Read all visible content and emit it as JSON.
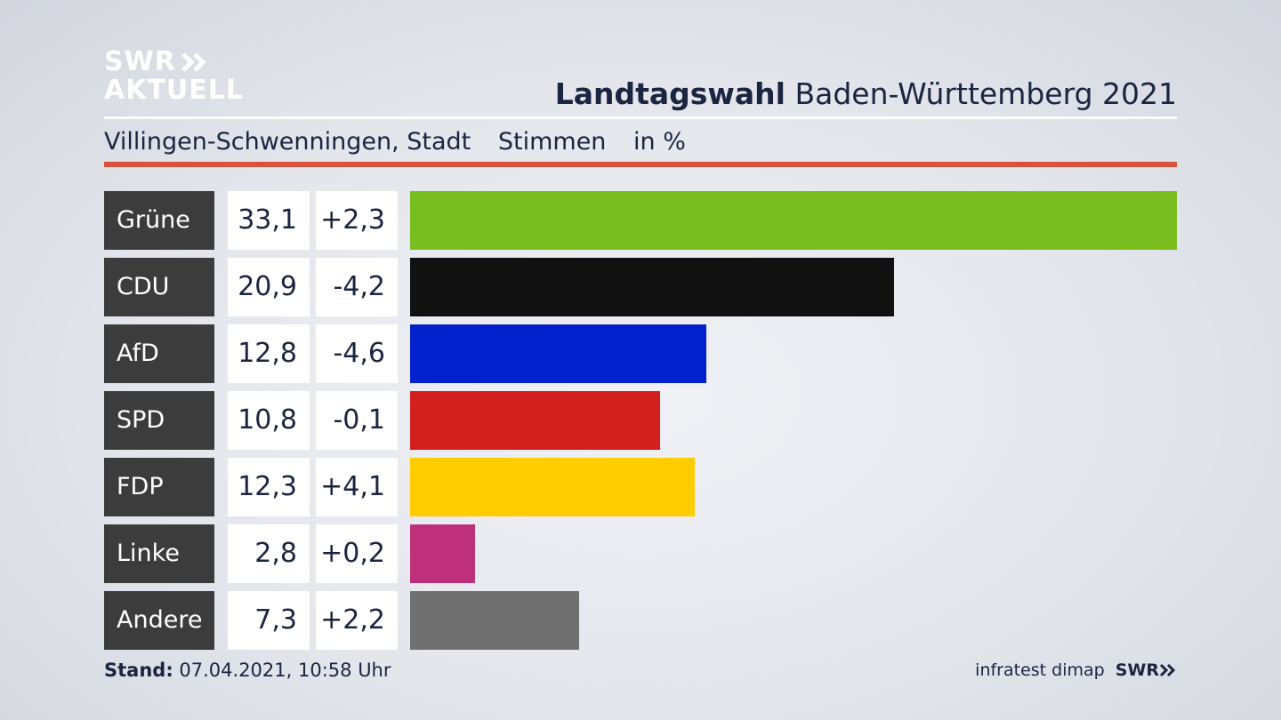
{
  "brand": {
    "logo_line1": "SWR",
    "logo_line2": "AKTUELL",
    "logo_color": "#ffffff"
  },
  "header": {
    "title_bold": "Landtagswahl",
    "title_rest": "Baden-Württemberg 2021"
  },
  "subheader": {
    "location": "Villingen-Schwenningen, Stadt",
    "measure": "Stimmen",
    "unit": "in %"
  },
  "footer": {
    "stand_label": "Stand:",
    "stand_value": "07.04.2021, 10:58 Uhr",
    "source": "infratest dimap",
    "broadcaster": "SWR"
  },
  "chart_data": {
    "type": "bar",
    "orientation": "horizontal",
    "categories": [
      "Grüne",
      "CDU",
      "AfD",
      "SPD",
      "FDP",
      "Linke",
      "Andere"
    ],
    "series": [
      {
        "values": [
          33.1,
          20.9,
          12.8,
          10.8,
          12.3,
          2.8,
          7.3
        ]
      }
    ],
    "value_labels": [
      "33,1",
      "20,9",
      "12,8",
      "10,8",
      "12,3",
      "2,8",
      "7,3"
    ],
    "change_labels": [
      "+2,3",
      "-4,2",
      "-4,6",
      "-0,1",
      "+4,1",
      "+0,2",
      "+2,2"
    ],
    "changes": [
      2.3,
      -4.2,
      -4.6,
      -0.1,
      4.1,
      0.2,
      2.2
    ],
    "colors": [
      "#78be1e",
      "#111111",
      "#0021cc",
      "#d41f1f",
      "#ffcc00",
      "#be307a",
      "#707070"
    ],
    "xlim": [
      0,
      33.1
    ],
    "grid": false,
    "legend": "none"
  }
}
